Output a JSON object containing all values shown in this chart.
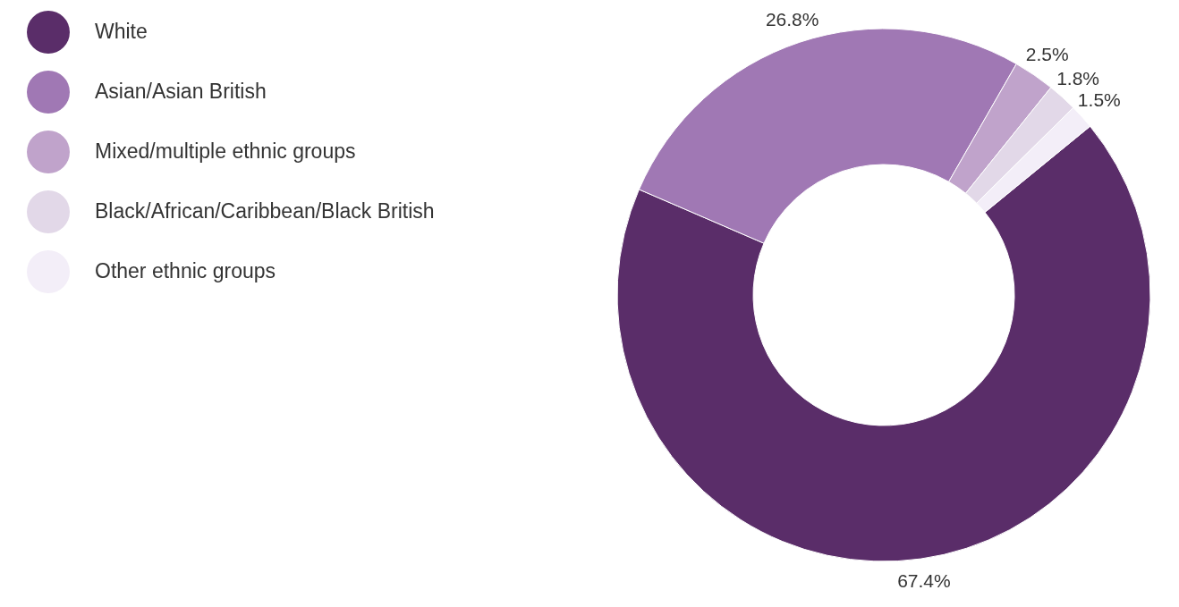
{
  "chart_data": {
    "type": "donut",
    "categories": [
      "White",
      "Asian/Asian British",
      "Mixed/multiple ethnic groups",
      "Black/African/Caribbean/Black British",
      "Other ethnic groups"
    ],
    "values": [
      67.4,
      26.8,
      2.5,
      1.8,
      1.5
    ],
    "colors": [
      "#5a2d69",
      "#a078b4",
      "#c0a3cb",
      "#e2d8e8",
      "#f3eef8"
    ],
    "value_labels": [
      "67.4%",
      "26.8%",
      "2.5%",
      "1.8%",
      "1.5%"
    ],
    "legend": "top left"
  }
}
